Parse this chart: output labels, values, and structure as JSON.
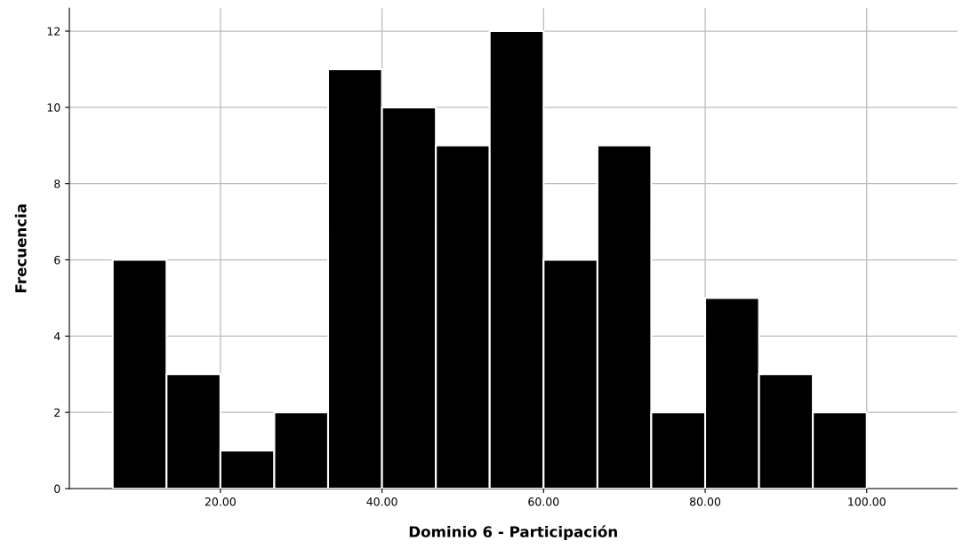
{
  "chart_data": {
    "type": "histogram",
    "xlabel": "Dominio 6 - Participación",
    "ylabel": "Frecuencia",
    "bins": [
      6.67,
      13.33,
      20,
      26.67,
      33.33,
      40,
      46.67,
      53.33,
      60,
      66.67,
      73.33,
      80,
      86.67,
      93.33,
      100
    ],
    "values": [
      6,
      3,
      1,
      2,
      11,
      10,
      9,
      12,
      6,
      9,
      2,
      5,
      3,
      2
    ],
    "color": "#000000",
    "xlim": [
      1.3,
      111.2
    ],
    "xticks": [
      {
        "value": 20,
        "label": "20.00"
      },
      {
        "value": 40,
        "label": "40.00"
      },
      {
        "value": 60,
        "label": "60.00"
      },
      {
        "value": 80,
        "label": "80.00"
      },
      {
        "value": 100,
        "label": "100.00"
      }
    ],
    "ylim": [
      0,
      12.6
    ],
    "yticks": [
      0,
      2,
      4,
      6,
      8,
      10,
      12
    ],
    "grid": true
  }
}
